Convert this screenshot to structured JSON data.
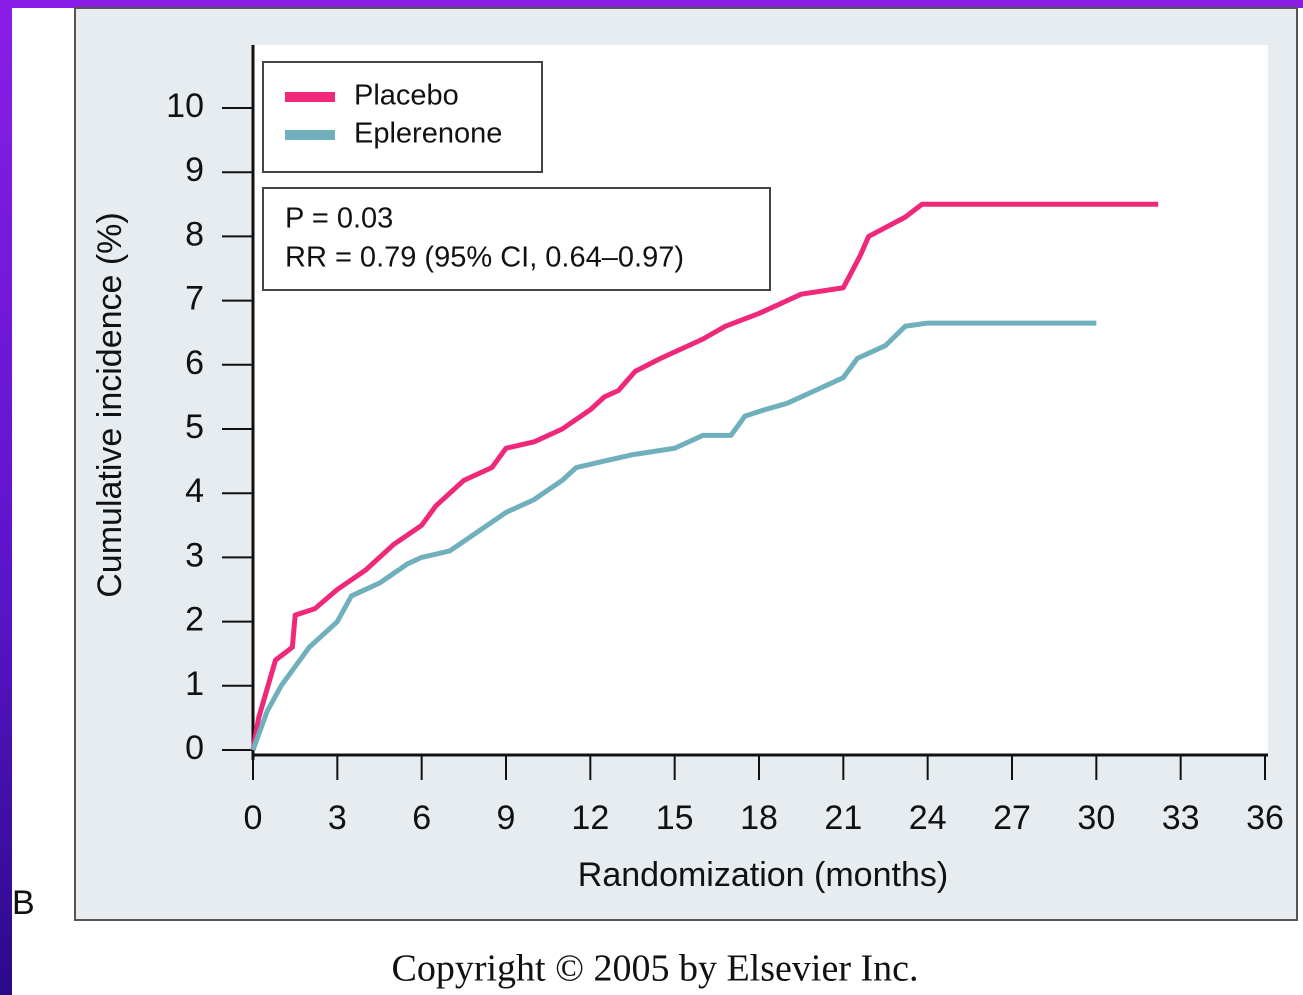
{
  "chart_data": {
    "type": "line",
    "panel_label": "B",
    "y_label": "Cumulative incidence (%)",
    "x_label": "Randomization (months)",
    "footer": "Copyright © 2005 by Elsevier Inc.",
    "annotations": [
      "P = 0.03",
      "RR = 0.79 (95% CI, 0.64–0.97)"
    ],
    "xlim": [
      0,
      36
    ],
    "ylim": [
      0,
      10
    ],
    "xticks": [
      0,
      3,
      6,
      9,
      12,
      15,
      18,
      21,
      24,
      27,
      30,
      33,
      36
    ],
    "yticks": [
      0,
      1,
      2,
      3,
      4,
      5,
      6,
      7,
      8,
      9,
      10
    ],
    "series": [
      {
        "name": "Placebo",
        "color": "#f0287a",
        "x": [
          0,
          0.2,
          0.8,
          1.4,
          1.5,
          2.2,
          3,
          4,
          5,
          6,
          6.5,
          7,
          7.5,
          8.5,
          9,
          10,
          11,
          12,
          12.5,
          13,
          13.6,
          14.5,
          16,
          16.8,
          18,
          19.5,
          21,
          21.6,
          21.9,
          23.2,
          23.8,
          32.2
        ],
        "values": [
          0,
          0.5,
          1.4,
          1.6,
          2.1,
          2.2,
          2.5,
          2.8,
          3.2,
          3.5,
          3.8,
          4.0,
          4.2,
          4.4,
          4.7,
          4.8,
          5.0,
          5.3,
          5.5,
          5.6,
          5.9,
          6.1,
          6.4,
          6.6,
          6.8,
          7.1,
          7.2,
          7.7,
          8.0,
          8.3,
          8.5,
          8.5
        ]
      },
      {
        "name": "Eplerenone",
        "color": "#6fb0bc",
        "x": [
          0,
          0.5,
          1,
          1.5,
          2,
          2.5,
          3,
          3.5,
          4.5,
          5.5,
          6,
          7,
          8,
          9,
          10,
          11,
          11.5,
          12.5,
          13.5,
          15,
          15.5,
          16,
          17,
          17.5,
          18.2,
          19,
          20,
          21,
          21.5,
          22.5,
          23.2,
          24,
          30
        ],
        "values": [
          0,
          0.6,
          1.0,
          1.3,
          1.6,
          1.8,
          2.0,
          2.4,
          2.6,
          2.9,
          3.0,
          3.1,
          3.4,
          3.7,
          3.9,
          4.2,
          4.4,
          4.5,
          4.6,
          4.7,
          4.8,
          4.9,
          4.9,
          5.2,
          5.3,
          5.4,
          5.6,
          5.8,
          6.1,
          6.3,
          6.6,
          6.65,
          6.65
        ]
      }
    ]
  }
}
